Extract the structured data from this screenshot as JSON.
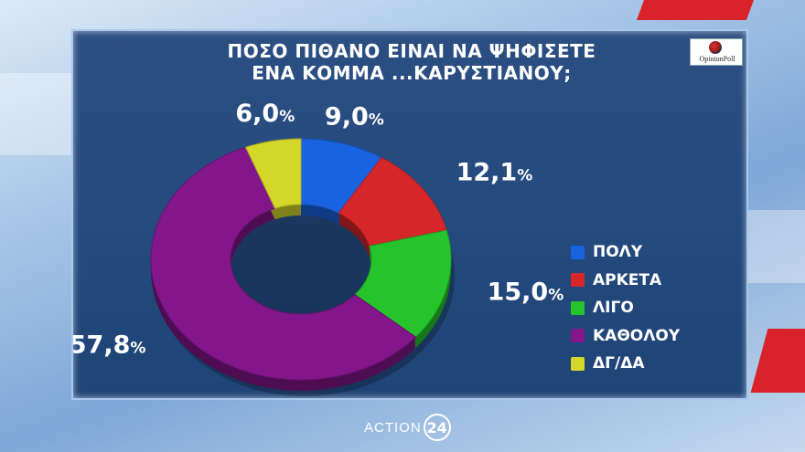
{
  "chart_data": {
    "type": "pie",
    "title_lines": [
      "ΠΟΣΟ ΠΙΘΑΝΟ ΕΙΝΑΙ ΝΑ ΨΗΦΙΣΕΤΕ",
      "ΕΝΑ ΚΟΜΜΑ ...ΚΑΡΥΣΤΙΑΝΟΥ;"
    ],
    "series": [
      {
        "name": "ΠΟΛΥ",
        "value": 9.0,
        "label": "9,0",
        "color": "#1a63e0"
      },
      {
        "name": "ΑΡΚΕΤΑ",
        "value": 12.1,
        "label": "12,1",
        "color": "#d6262a"
      },
      {
        "name": "ΛΙΓΟ",
        "value": 15.0,
        "label": "15,0",
        "color": "#26c42c"
      },
      {
        "name": "ΚΑΘΟΛΟΥ",
        "value": 57.8,
        "label": "57,8",
        "color": "#82168a"
      },
      {
        "name": "ΔΓ/ΔΑ",
        "value": 6.0,
        "label": "6,0",
        "color": "#d4d62a"
      }
    ],
    "unit": "%",
    "legend_position": "right"
  },
  "branding": {
    "poll_logo": "OpinionPoll",
    "channel_name": "ACTION",
    "channel_number": "24"
  }
}
